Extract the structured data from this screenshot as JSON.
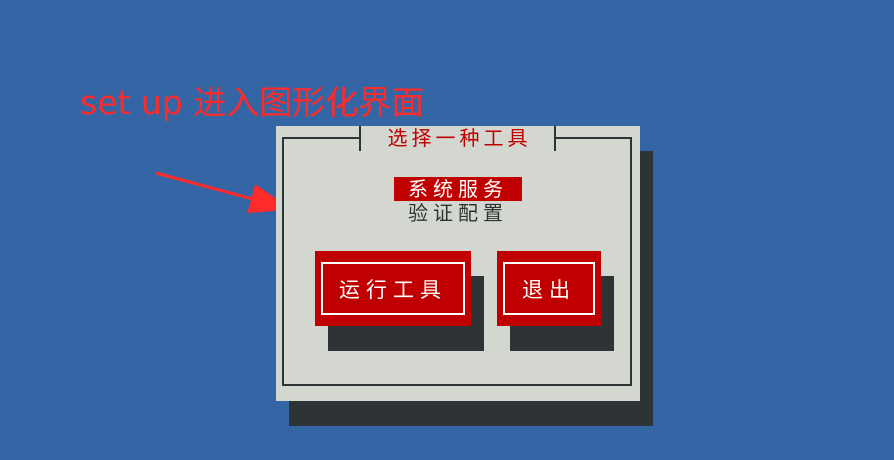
{
  "annotation": {
    "text": "set up 进入图形化界面",
    "color": "#ff2a2a"
  },
  "dialog": {
    "title": "选择一种工具",
    "menu_items": [
      {
        "label": "系统服务",
        "selected": true
      },
      {
        "label": "验证配置",
        "selected": false
      }
    ],
    "buttons": {
      "run_label": "运行工具",
      "exit_label": "退出"
    }
  },
  "colors": {
    "background": "#3465a4",
    "dialog": "#d3d7cf",
    "shadow": "#2e3436",
    "accent": "#c00000",
    "selected_text": "#ffffff"
  }
}
